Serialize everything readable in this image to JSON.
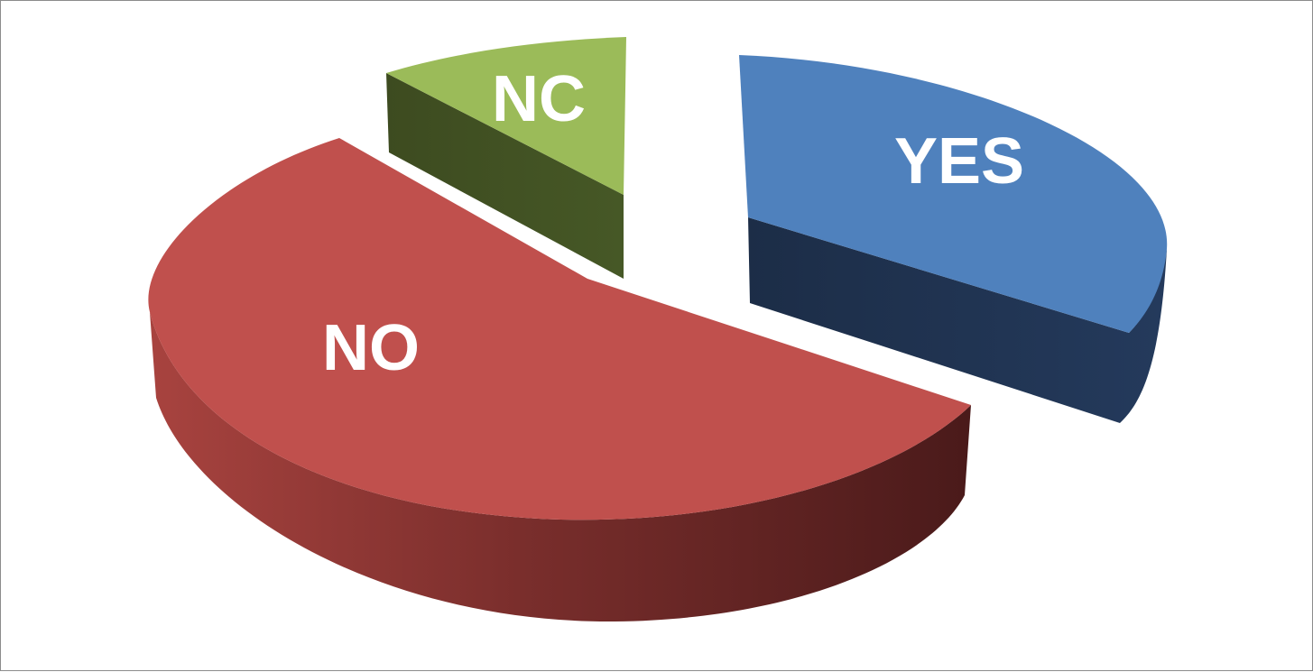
{
  "chart_data": {
    "type": "pie",
    "style": "3d-exploded",
    "title": "",
    "legend": "none",
    "slices": [
      {
        "label": "YES",
        "value": 35,
        "color": "#4f81bd",
        "side_color": "#1f304b",
        "icon": ""
      },
      {
        "label": "NO",
        "value": 55,
        "color": "#c0504d",
        "side_color": "#6e2523",
        "icon": ""
      },
      {
        "label": "NC",
        "value": 10,
        "color": "#9bbb59",
        "side_color": "#3f4e22",
        "icon": ""
      }
    ]
  }
}
